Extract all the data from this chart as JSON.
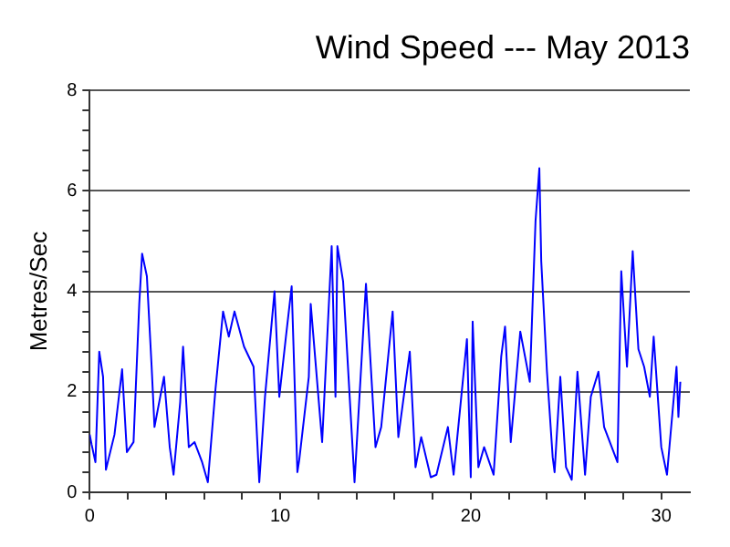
{
  "chart_data": {
    "type": "line",
    "title": "Wind Speed --- May 2013",
    "ylabel": "Metres/Sec",
    "xlim": [
      0,
      31.5
    ],
    "ylim": [
      0,
      8
    ],
    "xticks": [
      0,
      {
        "value": 2,
        "label": null
      },
      {
        "value": 4,
        "label": null
      },
      {
        "value": 6,
        "label": null
      },
      {
        "value": 8,
        "label": null
      },
      10,
      {
        "value": 12,
        "label": null
      },
      {
        "value": 14,
        "label": null
      },
      {
        "value": 16,
        "label": null
      },
      {
        "value": 18,
        "label": null
      },
      20,
      {
        "value": 22,
        "label": null
      },
      {
        "value": 24,
        "label": null
      },
      {
        "value": 26,
        "label": null
      },
      {
        "value": 28,
        "label": null
      },
      30
    ],
    "yticks": [
      0,
      {
        "value": 0.4,
        "label": null
      },
      {
        "value": 0.8,
        "label": null
      },
      {
        "value": 1.2,
        "label": null
      },
      {
        "value": 1.6,
        "label": null
      },
      2,
      {
        "value": 2.4,
        "label": null
      },
      {
        "value": 2.8,
        "label": null
      },
      {
        "value": 3.2,
        "label": null
      },
      {
        "value": 3.6,
        "label": null
      },
      4,
      {
        "value": 4.4,
        "label": null
      },
      {
        "value": 4.8,
        "label": null
      },
      {
        "value": 5.2,
        "label": null
      },
      {
        "value": 5.6,
        "label": null
      },
      6,
      {
        "value": 6.4,
        "label": null
      },
      {
        "value": 6.8,
        "label": null
      },
      {
        "value": 7.2,
        "label": null
      },
      {
        "value": 7.6,
        "label": null
      },
      8
    ],
    "grid": "y",
    "legend": false,
    "marker": "none",
    "line_style": "solid",
    "series": [
      {
        "color": "#0000ff",
        "x": [
          0,
          0.1,
          0.3,
          0.5,
          0.7,
          0.85,
          1.3,
          1.7,
          1.95,
          2.3,
          2.6,
          2.75,
          3.0,
          3.25,
          3.4,
          3.9,
          4.2,
          4.4,
          4.75,
          4.9,
          5.2,
          5.5,
          5.9,
          6.2,
          6.6,
          7.0,
          7.3,
          7.6,
          8.1,
          8.6,
          8.9,
          9.2,
          9.7,
          9.95,
          10.3,
          10.6,
          10.9,
          11.0,
          11.5,
          11.6,
          12.2,
          12.7,
          12.9,
          13.0,
          13.3,
          13.9,
          14.5,
          15.0,
          15.3,
          15.9,
          16.2,
          16.8,
          17.1,
          17.4,
          17.9,
          18.2,
          18.8,
          19.1,
          19.8,
          20.0,
          20.1,
          20.4,
          20.7,
          21.2,
          21.6,
          21.8,
          22.1,
          22.6,
          23.1,
          23.4,
          23.6,
          23.7,
          24.0,
          24.3,
          24.4,
          24.7,
          25.0,
          25.3,
          25.6,
          26.0,
          26.3,
          26.7,
          27.0,
          27.7,
          27.9,
          28.2,
          28.5,
          28.8,
          29.1,
          29.4,
          29.6,
          30.0,
          30.3,
          30.8,
          30.9,
          31.0
        ],
        "values": [
          1.15,
          0.95,
          0.6,
          2.8,
          2.3,
          0.45,
          1.15,
          2.45,
          0.8,
          1.0,
          3.75,
          4.75,
          4.3,
          2.5,
          1.3,
          2.3,
          0.9,
          0.35,
          1.8,
          2.9,
          0.9,
          1.0,
          0.6,
          0.2,
          2.05,
          3.6,
          3.1,
          3.6,
          2.9,
          2.5,
          0.2,
          1.9,
          4.0,
          1.9,
          3.1,
          4.1,
          0.4,
          0.65,
          2.3,
          3.75,
          1.0,
          4.9,
          1.9,
          4.9,
          4.2,
          0.2,
          4.15,
          0.9,
          1.3,
          3.6,
          1.1,
          2.8,
          0.5,
          1.1,
          0.3,
          0.35,
          1.3,
          0.35,
          3.05,
          0.3,
          3.4,
          0.5,
          0.9,
          0.35,
          2.7,
          3.3,
          1.0,
          3.2,
          2.2,
          5.4,
          6.45,
          4.6,
          2.4,
          0.7,
          0.4,
          2.3,
          0.5,
          0.25,
          2.4,
          0.35,
          1.9,
          2.4,
          1.3,
          0.6,
          4.4,
          2.5,
          4.8,
          2.85,
          2.5,
          1.9,
          3.1,
          0.9,
          0.35,
          2.5,
          1.5,
          2.2
        ]
      }
    ]
  }
}
